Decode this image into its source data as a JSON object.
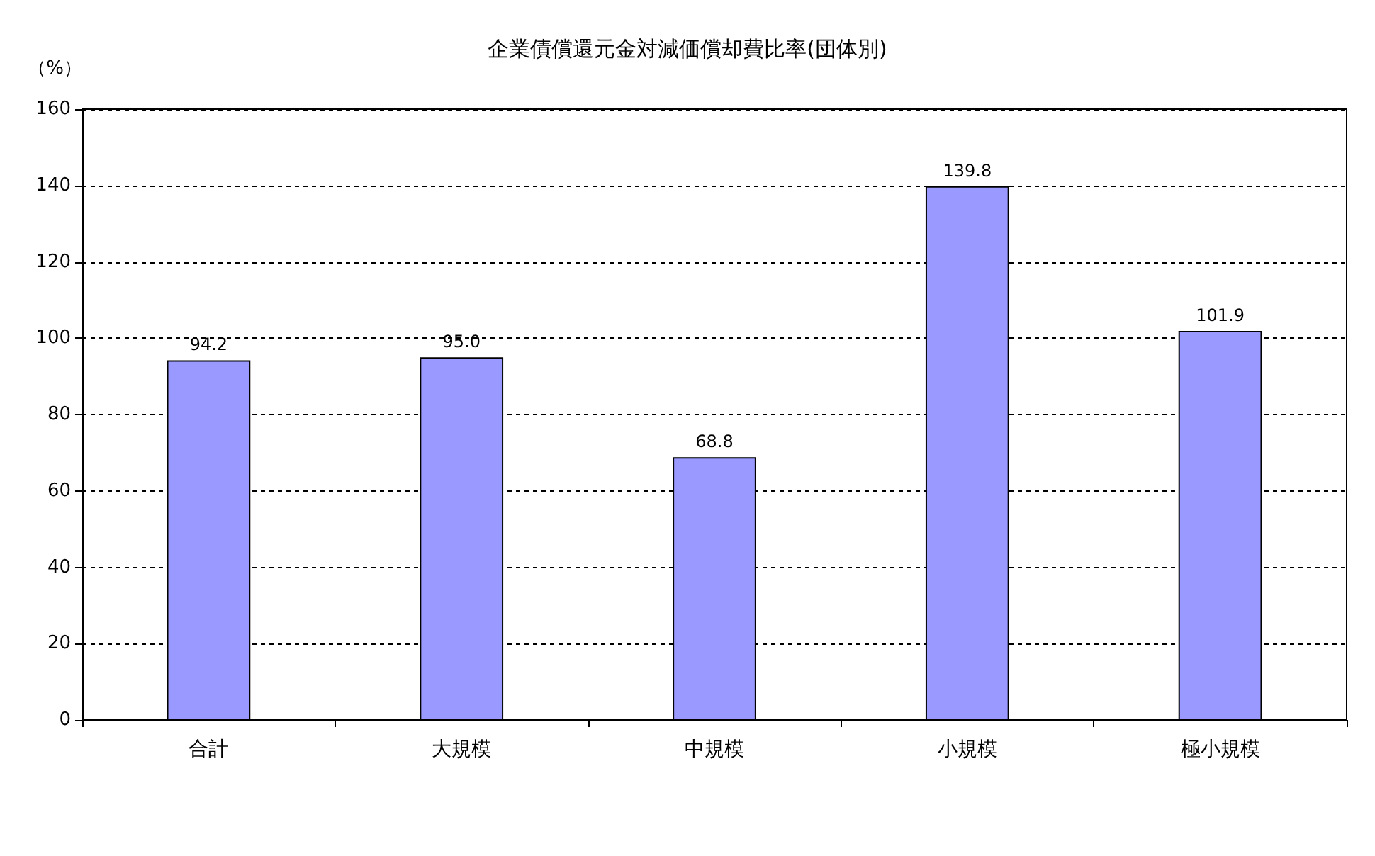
{
  "chart_data": {
    "type": "bar",
    "title": "企業債償還元金対減価償却費比率(団体別)",
    "ylabel": "（%）",
    "categories": [
      "合計",
      "大規模",
      "中規模",
      "小規模",
      "極小規模"
    ],
    "values": [
      94.2,
      95.0,
      68.8,
      139.8,
      101.9
    ],
    "value_labels": [
      "94.2",
      "95.0",
      "68.8",
      "139.8",
      "101.9"
    ],
    "color": "#9999ff",
    "ylim": [
      0,
      160
    ],
    "yticks": [
      0,
      20,
      40,
      60,
      80,
      100,
      120,
      140,
      160
    ],
    "grid": "y"
  }
}
